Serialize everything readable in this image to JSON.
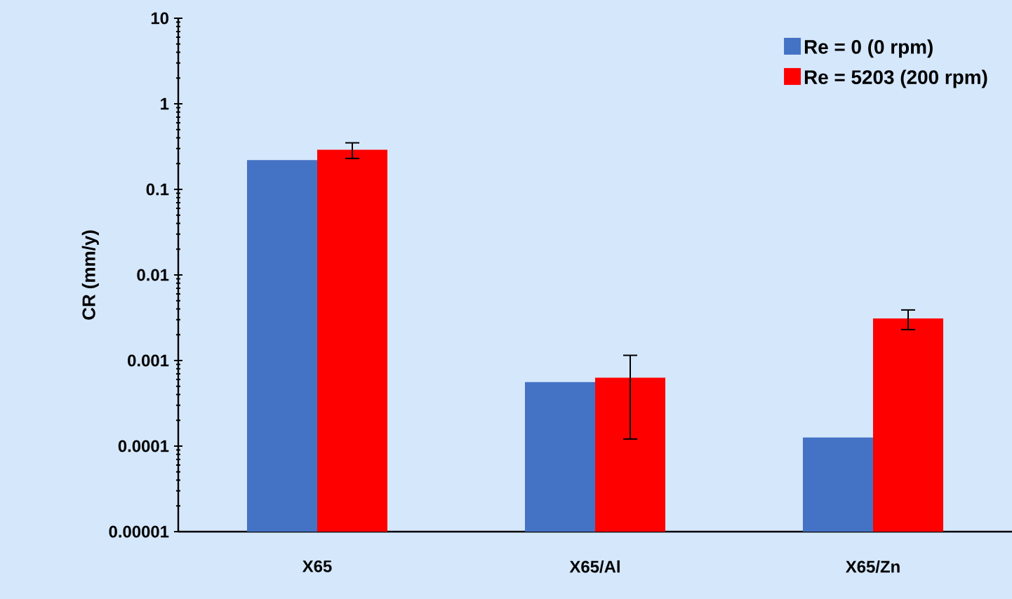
{
  "chart_data": {
    "type": "bar",
    "ylabel": "CR (mm/y)",
    "categories": [
      "X65",
      "X65/Al",
      "X65/Zn"
    ],
    "series": [
      {
        "name": "Re = 0 (0 rpm)",
        "color": "#4472c4",
        "values": [
          0.22,
          0.00056,
          0.000126
        ]
      },
      {
        "name": "Re = 5203 (200 rpm)",
        "color": "#ff0000",
        "values": [
          0.29,
          0.00063,
          0.0031
        ],
        "errors": [
          [
            0.23,
            0.35
          ],
          [
            0.000121,
            0.00115
          ],
          [
            0.0023,
            0.0039
          ]
        ]
      }
    ],
    "log": "y",
    "ylim": [
      1e-05,
      10
    ],
    "yticks": [
      {
        "value": 1e-05,
        "label": "0.00001"
      },
      0.0001,
      0.001,
      0.01,
      0.1,
      1,
      10
    ],
    "legend": "top right",
    "grid": false
  }
}
